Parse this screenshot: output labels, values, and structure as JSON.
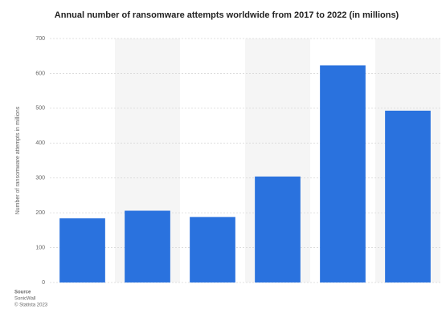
{
  "chart_data": {
    "type": "bar",
    "title": "Annual number of ransomware attempts worldwide from 2017 to 2022 (in millions)",
    "y_label": "Number of ransomware attempts in millions",
    "categories": [
      null,
      null,
      null,
      null,
      null,
      null
    ],
    "values": [
      184,
      206,
      188,
      304,
      623,
      493
    ],
    "color": "#2a72de",
    "ylim": [
      0,
      700
    ],
    "yticks": [
      0,
      100,
      200,
      300,
      400,
      500,
      600,
      700
    ],
    "grid": true,
    "source_label": "Source",
    "source": "SonicWall",
    "copyright": "© Statista 2023"
  }
}
